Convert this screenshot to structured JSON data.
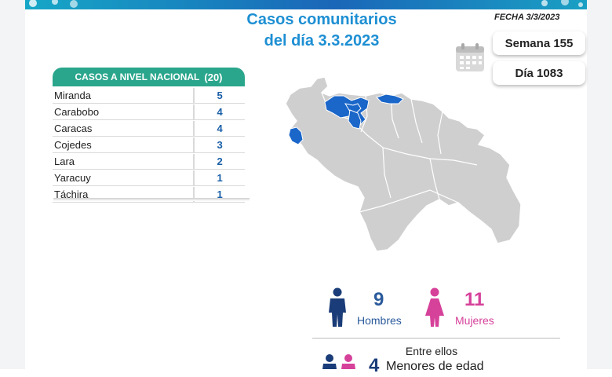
{
  "title_line1": "Casos comunitarios",
  "title_line2": "del día 3.3.2023",
  "fecha": "FECHA 3/3/2023",
  "semana": "Semana 155",
  "dia": "Día 1083",
  "table": {
    "header": "CASOS A NIVEL NACIONAL",
    "total": "(20)",
    "rows": [
      {
        "state": "Miranda",
        "count": "5"
      },
      {
        "state": "Carabobo",
        "count": "4"
      },
      {
        "state": "Caracas",
        "count": "4"
      },
      {
        "state": "Cojedes",
        "count": "3"
      },
      {
        "state": "Lara",
        "count": "2"
      },
      {
        "state": "Yaracuy",
        "count": "1"
      },
      {
        "state": "Táchira",
        "count": "1"
      }
    ]
  },
  "stats": {
    "hombres_count": "9",
    "hombres_label": "Hombres",
    "mujeres_count": "11",
    "mujeres_label": "Mujeres",
    "entre_ellos": "Entre ellos",
    "menores_count": "4",
    "menores_label": "Menores de edad"
  },
  "colors": {
    "title": "#1d8fd3",
    "table_header": "#2aa68c",
    "map_highlight": "#1a66c9",
    "map_base": "#c9c9c9",
    "hombres": "#2a5a9b",
    "mujeres": "#d6419a"
  }
}
